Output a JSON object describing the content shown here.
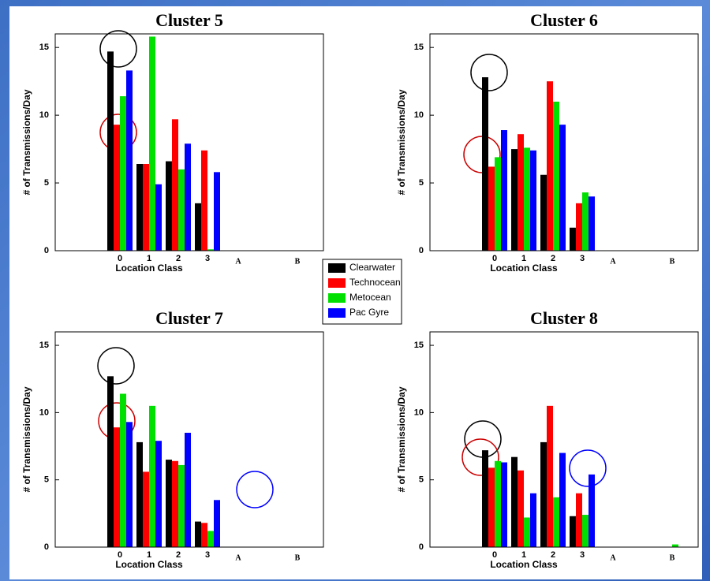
{
  "chart_data": [
    {
      "type": "bar",
      "title": "Cluster 5",
      "x_label": "Location Class",
      "y_label": "# of Transmissions/Day",
      "categories": [
        "0",
        "1",
        "2",
        "3",
        "A",
        "B"
      ],
      "ylim": [
        0,
        16
      ],
      "yticks": [
        0,
        5,
        10,
        15
      ],
      "series": [
        {
          "name": "Clearwater",
          "color": "#000000",
          "values": [
            14.7,
            6.4,
            6.6,
            3.5,
            0,
            0
          ]
        },
        {
          "name": "Technocean",
          "color": "#ff0000",
          "values": [
            9.3,
            6.4,
            9.7,
            7.4,
            0,
            0
          ]
        },
        {
          "name": "Metocean",
          "color": "#00e000",
          "values": [
            11.4,
            15.8,
            6.0,
            0.1,
            0,
            0
          ]
        },
        {
          "name": "Pac Gyre",
          "color": "#0000ff",
          "values": [
            13.3,
            4.9,
            7.9,
            5.8,
            0,
            0
          ]
        }
      ]
    },
    {
      "type": "bar",
      "title": "Cluster 6",
      "x_label": "Location Class",
      "y_label": "# of Transmissions/Day",
      "categories": [
        "0",
        "1",
        "2",
        "3",
        "A",
        "B"
      ],
      "ylim": [
        0,
        16
      ],
      "yticks": [
        0,
        5,
        10,
        15
      ],
      "series": [
        {
          "name": "Clearwater",
          "color": "#000000",
          "values": [
            12.8,
            7.5,
            5.6,
            1.7,
            0,
            0
          ]
        },
        {
          "name": "Technocean",
          "color": "#ff0000",
          "values": [
            6.2,
            8.6,
            12.5,
            3.5,
            0,
            0
          ]
        },
        {
          "name": "Metocean",
          "color": "#00e000",
          "values": [
            6.9,
            7.6,
            11.0,
            4.3,
            0,
            0
          ]
        },
        {
          "name": "Pac Gyre",
          "color": "#0000ff",
          "values": [
            8.9,
            7.4,
            9.3,
            4.0,
            0,
            0
          ]
        }
      ]
    },
    {
      "type": "bar",
      "title": "Cluster 7",
      "x_label": "Location Class",
      "y_label": "# of Transmissions/Day",
      "categories": [
        "0",
        "1",
        "2",
        "3",
        "A",
        "B"
      ],
      "ylim": [
        0,
        16
      ],
      "yticks": [
        0,
        5,
        10,
        15
      ],
      "series": [
        {
          "name": "Clearwater",
          "color": "#000000",
          "values": [
            12.7,
            7.8,
            6.5,
            1.9,
            0,
            0
          ]
        },
        {
          "name": "Technocean",
          "color": "#ff0000",
          "values": [
            8.9,
            5.6,
            6.4,
            1.8,
            0,
            0
          ]
        },
        {
          "name": "Metocean",
          "color": "#00e000",
          "values": [
            11.4,
            10.5,
            6.1,
            1.2,
            0,
            0
          ]
        },
        {
          "name": "Pac Gyre",
          "color": "#0000ff",
          "values": [
            9.3,
            7.9,
            8.5,
            3.5,
            0,
            0
          ]
        }
      ]
    },
    {
      "type": "bar",
      "title": "Cluster 8",
      "x_label": "Location Class",
      "y_label": "# of Transmissions/Day",
      "categories": [
        "0",
        "1",
        "2",
        "3",
        "A",
        "B"
      ],
      "ylim": [
        0,
        16
      ],
      "yticks": [
        0,
        5,
        10,
        15
      ],
      "series": [
        {
          "name": "Clearwater",
          "color": "#000000",
          "values": [
            7.2,
            6.7,
            7.8,
            2.3,
            0,
            0
          ]
        },
        {
          "name": "Technocean",
          "color": "#ff0000",
          "values": [
            5.9,
            5.7,
            10.5,
            4.0,
            0,
            0
          ]
        },
        {
          "name": "Metocean",
          "color": "#00e000",
          "values": [
            6.4,
            2.2,
            3.7,
            2.4,
            0,
            0.2
          ]
        },
        {
          "name": "Pac Gyre",
          "color": "#0000ff",
          "values": [
            6.3,
            4.0,
            7.0,
            5.4,
            0,
            0
          ]
        }
      ]
    }
  ]
}
